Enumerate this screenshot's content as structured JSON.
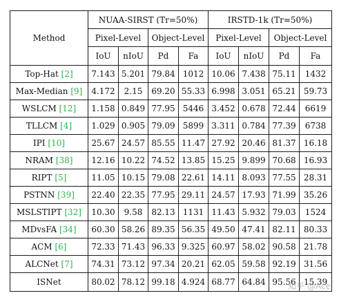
{
  "table": {
    "method_header": "Method",
    "datasets": [
      {
        "name": "NUAA-SIRST (Tr=50%)"
      },
      {
        "name": "IRSTD-1k (Tr=50%)"
      }
    ],
    "level_headers": [
      "Pixel-Level",
      "Object-Level",
      "Pixel-Level",
      "Object-Level"
    ],
    "metric_headers": [
      "IoU",
      "nIoU",
      "Pd",
      "Fa",
      "IoU",
      "nIoU",
      "Pd",
      "Fa"
    ],
    "rows": [
      {
        "method": "Top-Hat",
        "ref": "[2]",
        "values": [
          "7.143",
          "5.201",
          "79.84",
          "1012",
          "10.06",
          "7.438",
          "75.11",
          "1432"
        ]
      },
      {
        "method": "Max-Median",
        "ref": "[9]",
        "values": [
          "4.172",
          "2.15",
          "69.20",
          "55.33",
          "6.998",
          "3.051",
          "65.21",
          "59.73"
        ]
      },
      {
        "method": "WSLCM",
        "ref": "[12]",
        "values": [
          "1.158",
          "0.849",
          "77.95",
          "5446",
          "3.452",
          "0.678",
          "72.44",
          "6619"
        ]
      },
      {
        "method": "TLLCM",
        "ref": "[4]",
        "values": [
          "1.029",
          "0.905",
          "79.09",
          "5899",
          "3.311",
          "0.784",
          "77.39",
          "6738"
        ]
      },
      {
        "method": "IPI",
        "ref": "[10]",
        "values": [
          "25.67",
          "24.57",
          "85.55",
          "11.47",
          "27.92",
          "20.46",
          "81.37",
          "16.18"
        ]
      },
      {
        "method": "NRAM",
        "ref": "[38]",
        "values": [
          "12.16",
          "10.22",
          "74.52",
          "13.85",
          "15.25",
          "9.899",
          "70.68",
          "16.93"
        ]
      },
      {
        "method": "RIPT",
        "ref": "[5]",
        "values": [
          "11.05",
          "10.15",
          "79.08",
          "22.61",
          "14.11",
          "8.093",
          "77.55",
          "28.31"
        ]
      },
      {
        "method": "PSTNN",
        "ref": "[39]",
        "values": [
          "22.40",
          "22.35",
          "77.95",
          "29.11",
          "24.57",
          "17.93",
          "71.99",
          "35.26"
        ]
      },
      {
        "method": "MSLSTIPT",
        "ref": "[32]",
        "values": [
          "10.30",
          "9.58",
          "82.13",
          "1131",
          "11.43",
          "5.932",
          "79.03",
          "1524"
        ]
      },
      {
        "method": "MDvsFA",
        "ref": "[34]",
        "values": [
          "60.30",
          "58.26",
          "89.35",
          "56.35",
          "49.50",
          "47.41",
          "82.11",
          "80.33"
        ]
      },
      {
        "method": "ACM",
        "ref": "[6]",
        "values": [
          "72.33",
          "71.43",
          "96.33",
          "9.325",
          "60.97",
          "58.02",
          "90.58",
          "21.78"
        ]
      },
      {
        "method": "ALCNet",
        "ref": "[7]",
        "values": [
          "74.31",
          "73.12",
          "97.34",
          "20.21",
          "62.05",
          "59.58",
          "92.19",
          "31.56"
        ]
      },
      {
        "method": "ISNet",
        "ref": "",
        "values": [
          "80.02",
          "78.12",
          "99.18",
          "4.924",
          "68.77",
          "64.84",
          "95.56",
          "15.39"
        ],
        "bold": true
      }
    ]
  },
  "watermark": "知乎 @Ace",
  "colors": {
    "ref_link": "#2bb24c",
    "border": "#1a1a1a"
  }
}
